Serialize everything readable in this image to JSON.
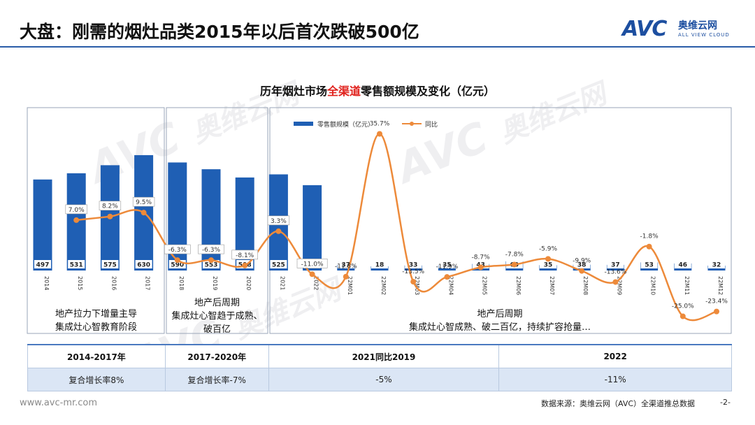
{
  "header": {
    "title": "大盘：刚需的烟灶品类2015年以后首次跌破500亿",
    "logo_mark": "AVC",
    "logo_cn": "奥维云网",
    "logo_en": "ALL VIEW CLOUD"
  },
  "chart_title": {
    "prefix": "历年烟灶市场",
    "highlight": "全渠道",
    "suffix": "零售额规模及变化（亿元）"
  },
  "colors": {
    "bar": "#1f5fb4",
    "line": "#ed8a3a",
    "title_accent": "#e0201b",
    "table_header_border": "#4a79c0",
    "table_value_bg": "#dbe6f5"
  },
  "chart_data": {
    "type": "bar",
    "categories": [
      "2014",
      "2015",
      "2016",
      "2017",
      "2018",
      "2019",
      "2020",
      "2021",
      "2022",
      "22M01",
      "22M02",
      "22M03",
      "22M04",
      "22M05",
      "22M06",
      "22M07",
      "22M08",
      "22M09",
      "22M10",
      "22M11",
      "22M12"
    ],
    "series": [
      {
        "name": "零售额规模（亿元）",
        "type": "bar",
        "values": [
          497,
          531,
          575,
          630,
          590,
          553,
          508,
          525,
          466,
          37,
          18,
          33,
          35,
          43,
          60,
          35,
          38,
          37,
          53,
          46,
          32
        ]
      },
      {
        "name": "同比",
        "type": "line",
        "values": [
          null,
          7.0,
          8.2,
          9.5,
          -6.3,
          -6.3,
          -8.1,
          3.3,
          -11.0,
          -11.8,
          35.7,
          -13.5,
          -11.9,
          -8.7,
          -7.8,
          -5.9,
          -9.9,
          -13.6,
          -1.8,
          -25.0,
          -23.4
        ],
        "labels": [
          "",
          "7.0%",
          "8.2%",
          "9.5%",
          "-6.3%",
          "-6.3%",
          "-8.1%",
          "3.3%",
          "-11.0%",
          "-11.8%",
          "35.7%",
          "-13.5%",
          "-11.9%",
          "-8.7%",
          "-7.8%",
          "-5.9%",
          "-9.9%",
          "-13.6%",
          "-1.8%",
          "-25.0%",
          "-23.4%"
        ]
      }
    ],
    "legend": {
      "position": "top-center",
      "bar_label": "零售额规模（亿元）",
      "line_label": "同比"
    },
    "grid": false
  },
  "phases": [
    {
      "lines": [
        "地产拉力下增量主导",
        "集成灶心智教育阶段"
      ]
    },
    {
      "lines": [
        "地产后周期",
        "集成灶心智趋于成熟、",
        "破百亿"
      ]
    },
    {
      "lines": [
        "地产后周期",
        "集成灶心智成熟、破二百亿，持续扩容抢量…"
      ]
    }
  ],
  "table": {
    "headers": [
      "2014-2017年",
      "2017-2020年",
      "2021同比2019",
      "2022"
    ],
    "values": [
      "复合增长率8%",
      "复合增长率-7%",
      "-5%",
      "-11%"
    ]
  },
  "watermark": {
    "mark": "AVC",
    "cn": "奥维云网",
    "en": "ALL VIEW CLOUD"
  },
  "footer": {
    "url": "www.avc-mr.com",
    "source": "数据来源：奥维云网（AVC）全渠道推总数据",
    "page": "-2-"
  }
}
